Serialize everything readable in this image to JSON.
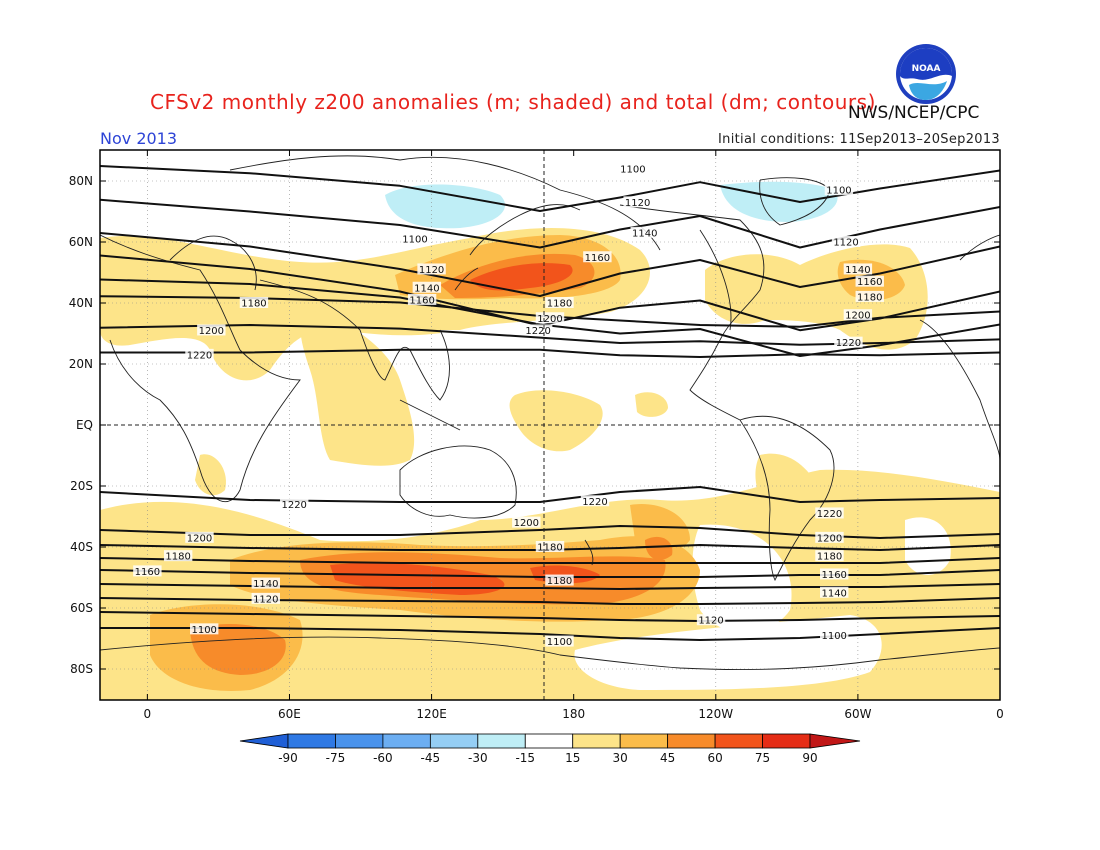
{
  "title": "CFSv2 monthly z200 anomalies (m; shaded) and total (dm; contours)",
  "credit": "NWS/NCEP/CPC",
  "period": "Nov 2013",
  "initial_conditions": "Initial conditions: 11Sep2013–20Sep2013",
  "logo_text": "NOAA",
  "map": {
    "projection": "cylindrical equidistant, centered on 180",
    "lat_labels": [
      "80N",
      "60N",
      "40N",
      "20N",
      "EQ",
      "20S",
      "40S",
      "60S",
      "80S"
    ],
    "lon_labels": [
      "0",
      "60E",
      "120E",
      "180",
      "120W",
      "60W",
      "0"
    ],
    "contour_interval_dm": 20,
    "contour_labels": [
      {
        "text": "1100",
        "lon": -155,
        "lat": 84
      },
      {
        "text": "1120",
        "lon": -153,
        "lat": 73
      },
      {
        "text": "1140",
        "lon": -150,
        "lat": 63
      },
      {
        "text": "1160",
        "lon": -170,
        "lat": 55
      },
      {
        "text": "1100",
        "lon": 113,
        "lat": 61
      },
      {
        "text": "1120",
        "lon": 120,
        "lat": 51
      },
      {
        "text": "1140",
        "lon": 118,
        "lat": 45
      },
      {
        "text": "1160",
        "lon": 116,
        "lat": 41
      },
      {
        "text": "1180",
        "lon": 45,
        "lat": 40
      },
      {
        "text": "1200",
        "lon": 27,
        "lat": 31
      },
      {
        "text": "1220",
        "lon": 22,
        "lat": 23
      },
      {
        "text": "1180",
        "lon": 174,
        "lat": 40
      },
      {
        "text": "1200",
        "lon": 170,
        "lat": 35
      },
      {
        "text": "1220",
        "lon": 165,
        "lat": 31
      },
      {
        "text": "1100",
        "lon": -68,
        "lat": 77
      },
      {
        "text": "1120",
        "lon": -65,
        "lat": 60
      },
      {
        "text": "1140",
        "lon": -60,
        "lat": 51
      },
      {
        "text": "1160",
        "lon": -55,
        "lat": 47
      },
      {
        "text": "1180",
        "lon": -55,
        "lat": 42
      },
      {
        "text": "1200",
        "lon": -60,
        "lat": 36
      },
      {
        "text": "1220",
        "lon": -64,
        "lat": 27
      },
      {
        "text": "1220",
        "lon": 62,
        "lat": -26
      },
      {
        "text": "1220",
        "lon": -171,
        "lat": -25
      },
      {
        "text": "1200",
        "lon": 160,
        "lat": -32
      },
      {
        "text": "1180",
        "lon": 170,
        "lat": -40
      },
      {
        "text": "1180",
        "lon": 174,
        "lat": -51
      },
      {
        "text": "1200",
        "lon": 22,
        "lat": -37
      },
      {
        "text": "1180",
        "lon": 13,
        "lat": -43
      },
      {
        "text": "1160",
        "lon": 0,
        "lat": -48
      },
      {
        "text": "1140",
        "lon": 50,
        "lat": -52
      },
      {
        "text": "1120",
        "lon": 50,
        "lat": -57
      },
      {
        "text": "1100",
        "lon": 24,
        "lat": -67
      },
      {
        "text": "1100",
        "lon": 174,
        "lat": -71
      },
      {
        "text": "1120",
        "lon": -122,
        "lat": -64
      },
      {
        "text": "1220",
        "lon": -72,
        "lat": -29
      },
      {
        "text": "1200",
        "lon": -72,
        "lat": -37
      },
      {
        "text": "1180",
        "lon": -72,
        "lat": -43
      },
      {
        "text": "1160",
        "lon": -70,
        "lat": -49
      },
      {
        "text": "1140",
        "lon": -70,
        "lat": -55
      },
      {
        "text": "1100",
        "lon": -70,
        "lat": -69
      }
    ]
  },
  "colorbar": {
    "labels": [
      "-90",
      "-75",
      "-60",
      "-45",
      "-30",
      "-15",
      "15",
      "30",
      "45",
      "60",
      "75",
      "90"
    ],
    "colors": [
      "#1f5fd6",
      "#2f79e4",
      "#4a93ec",
      "#6caef2",
      "#95cef4",
      "#bfeef6",
      "#ffffff",
      "#fde489",
      "#fbbc4a",
      "#f78b2a",
      "#f2541b",
      "#e52d16",
      "#c11717"
    ]
  }
}
